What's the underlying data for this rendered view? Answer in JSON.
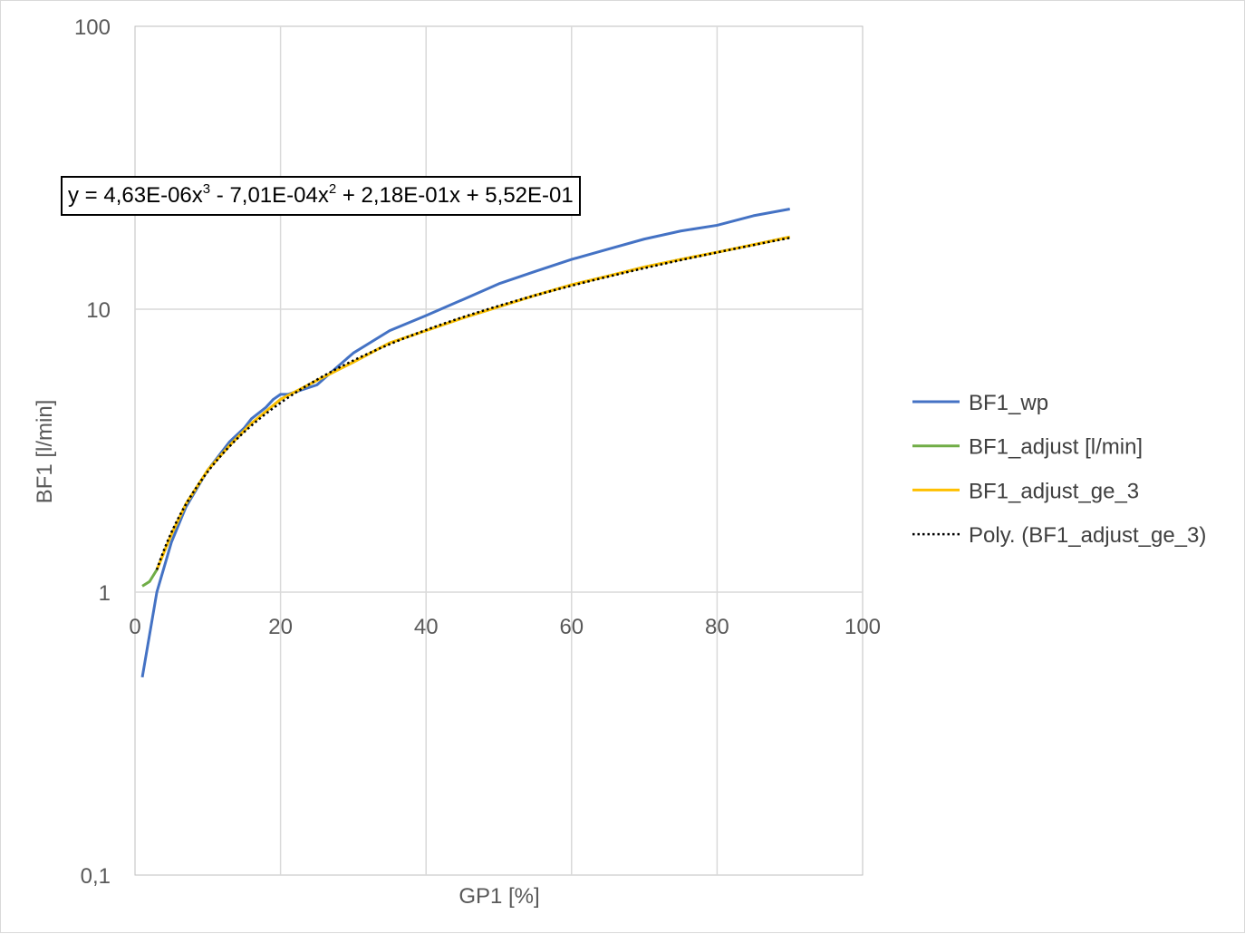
{
  "chart_data": {
    "type": "line",
    "title": "",
    "xlabel": "GP1 [%]",
    "ylabel": "BF1 [l/min]",
    "xlim": [
      0,
      100
    ],
    "ylim": [
      0.1,
      100
    ],
    "y_scale": "log",
    "x_ticks": [
      0,
      20,
      40,
      60,
      80,
      100
    ],
    "x_tick_labels": [
      "0",
      "20",
      "40",
      "60",
      "80",
      "100"
    ],
    "y_ticks": [
      0.1,
      1,
      10,
      100
    ],
    "y_tick_labels": [
      "0,1",
      "1",
      "10",
      "100"
    ],
    "grid": true,
    "legend_position": "right",
    "series": [
      {
        "name": "BF1_wp",
        "color": "#4472c4",
        "style": "solid",
        "points": [
          [
            1,
            0.5
          ],
          [
            3,
            1.0
          ],
          [
            5,
            1.5
          ],
          [
            7,
            2.0
          ],
          [
            10,
            2.7
          ],
          [
            13,
            3.4
          ],
          [
            15,
            3.8
          ],
          [
            16,
            4.1
          ],
          [
            18,
            4.5
          ],
          [
            19,
            4.8
          ],
          [
            20,
            5.0
          ],
          [
            21,
            5.0
          ],
          [
            25,
            5.4
          ],
          [
            27,
            6.0
          ],
          [
            30,
            7.0
          ],
          [
            35,
            8.4
          ],
          [
            40,
            9.5
          ],
          [
            45,
            10.8
          ],
          [
            50,
            12.3
          ],
          [
            55,
            13.6
          ],
          [
            60,
            15.0
          ],
          [
            65,
            16.3
          ],
          [
            70,
            17.7
          ],
          [
            75,
            18.9
          ],
          [
            80,
            19.8
          ],
          [
            85,
            21.4
          ],
          [
            90,
            22.6
          ]
        ]
      },
      {
        "name": "BF1_adjust [l/min]",
        "color": "#70ad47",
        "style": "solid",
        "points": [
          [
            1,
            1.05
          ],
          [
            2,
            1.09
          ],
          [
            3,
            1.2
          ],
          [
            5,
            1.6
          ],
          [
            7,
            2.05
          ],
          [
            10,
            2.7
          ],
          [
            13,
            3.3
          ],
          [
            16,
            3.95
          ],
          [
            20,
            4.8
          ],
          [
            25,
            5.6
          ],
          [
            30,
            6.5
          ],
          [
            35,
            7.6
          ],
          [
            40,
            8.4
          ],
          [
            45,
            9.3
          ],
          [
            50,
            10.2
          ],
          [
            55,
            11.2
          ],
          [
            60,
            12.2
          ],
          [
            65,
            13.1
          ],
          [
            70,
            14.1
          ],
          [
            75,
            15.0
          ],
          [
            80,
            15.9
          ],
          [
            85,
            16.9
          ],
          [
            90,
            18.0
          ]
        ]
      },
      {
        "name": "BF1_adjust_ge_3",
        "color": "#ffc000",
        "style": "solid",
        "points": [
          [
            3,
            1.2
          ],
          [
            5,
            1.6
          ],
          [
            7,
            2.05
          ],
          [
            10,
            2.7
          ],
          [
            13,
            3.3
          ],
          [
            16,
            3.95
          ],
          [
            20,
            4.8
          ],
          [
            25,
            5.6
          ],
          [
            30,
            6.5
          ],
          [
            35,
            7.6
          ],
          [
            40,
            8.4
          ],
          [
            45,
            9.3
          ],
          [
            50,
            10.2
          ],
          [
            55,
            11.2
          ],
          [
            60,
            12.2
          ],
          [
            65,
            13.1
          ],
          [
            70,
            14.1
          ],
          [
            75,
            15.0
          ],
          [
            80,
            15.9
          ],
          [
            85,
            16.9
          ],
          [
            90,
            18.0
          ]
        ]
      },
      {
        "name": "Poly. (BF1_adjust_ge_3)",
        "color": "#000000",
        "style": "dotted",
        "trendline": {
          "type": "poly3",
          "coefficients": [
            4.63e-06,
            -0.000701,
            0.218,
            0.552
          ],
          "x_range": [
            3,
            90
          ]
        }
      }
    ],
    "annotations": [
      {
        "id": "trendline-equation",
        "parts": [
          "y = 4,63E-06x",
          "3",
          " - 7,01E-04x",
          "2",
          " + 2,18E-01x + 5,52E-01"
        ]
      }
    ]
  }
}
